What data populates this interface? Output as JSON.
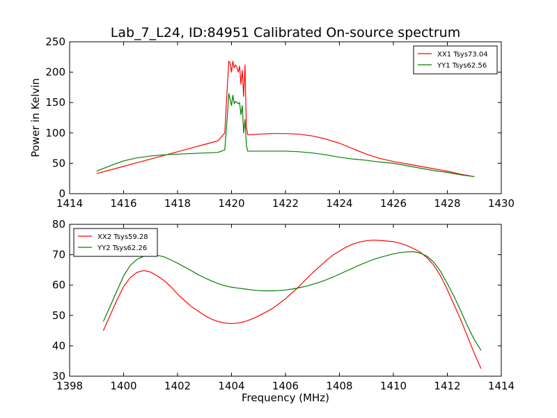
{
  "chart_data": {
    "title": "Lab_7_L24, ID:84951 Calibrated On-source spectrum",
    "colors": {
      "XX": "#ff0000",
      "YY": "#007f00"
    },
    "panels": [
      {
        "type": "line",
        "xlim": [
          1414,
          1430
        ],
        "ylim": [
          0,
          250
        ],
        "xticks": [
          1414,
          1416,
          1418,
          1420,
          1422,
          1424,
          1426,
          1428,
          1430
        ],
        "yticks": [
          0,
          50,
          100,
          150,
          200,
          250
        ],
        "xlabel": "",
        "ylabel": "Power in Kelvin",
        "legend_position": "top-right",
        "series": [
          {
            "name": "XX1 Tsys73.04",
            "color": "#ff0000",
            "x": [
              1415.0,
              1415.5,
              1416.0,
              1416.5,
              1417.0,
              1417.5,
              1418.0,
              1418.5,
              1419.0,
              1419.5,
              1419.75,
              1419.85,
              1419.9,
              1419.95,
              1420.0,
              1420.05,
              1420.1,
              1420.15,
              1420.2,
              1420.25,
              1420.3,
              1420.35,
              1420.4,
              1420.45,
              1420.5,
              1420.55,
              1420.6,
              1420.7,
              1421.0,
              1421.5,
              1422.0,
              1422.5,
              1423.0,
              1423.5,
              1424.0,
              1424.5,
              1425.0,
              1425.5,
              1426.0,
              1426.5,
              1427.0,
              1427.5,
              1428.0,
              1428.5,
              1429.0
            ],
            "y": [
              33,
              39,
              45,
              51,
              57,
              63,
              69,
              75,
              81,
              87,
              100,
              180,
              218,
              215,
              200,
              218,
              207,
              212,
              208,
              200,
              210,
              180,
              203,
              160,
              212,
              110,
              97,
              97,
              98,
              99,
              99,
              98,
              95,
              90,
              83,
              74,
              65,
              58,
              53,
              49,
              45,
              41,
              37,
              32,
              28
            ]
          },
          {
            "name": "YY1 Tsys62.56",
            "color": "#007f00",
            "x": [
              1415.0,
              1415.5,
              1416.0,
              1416.5,
              1417.0,
              1417.5,
              1418.0,
              1418.5,
              1419.0,
              1419.5,
              1419.75,
              1419.85,
              1419.9,
              1419.95,
              1420.0,
              1420.05,
              1420.1,
              1420.15,
              1420.2,
              1420.25,
              1420.3,
              1420.35,
              1420.4,
              1420.45,
              1420.5,
              1420.55,
              1420.6,
              1420.7,
              1421.0,
              1421.5,
              1422.0,
              1422.5,
              1423.0,
              1423.5,
              1424.0,
              1424.5,
              1425.0,
              1425.5,
              1426.0,
              1426.5,
              1427.0,
              1427.5,
              1428.0,
              1428.5,
              1429.0
            ],
            "y": [
              37,
              46,
              54,
              59,
              62,
              64,
              65,
              66,
              67,
              68,
              72,
              130,
              165,
              155,
              145,
              162,
              148,
              152,
              150,
              148,
              150,
              130,
              145,
              100,
              122,
              80,
              70,
              70,
              70,
              70,
              70,
              69,
              67,
              64,
              60,
              57,
              55,
              52,
              50,
              46,
              42,
              38,
              35,
              31,
              28
            ]
          }
        ]
      },
      {
        "type": "line",
        "xlim": [
          1398,
          1414
        ],
        "ylim": [
          30,
          80
        ],
        "xticks": [
          1398,
          1400,
          1402,
          1404,
          1406,
          1408,
          1410,
          1412,
          1414
        ],
        "yticks": [
          30,
          40,
          50,
          60,
          70,
          80
        ],
        "xlabel": "Frequency (MHz)",
        "ylabel": "",
        "legend_position": "top-left",
        "series": [
          {
            "name": "XX2 Tsys59.28",
            "color": "#ff0000",
            "x": [
              1399.25,
              1399.5,
              1399.75,
              1400.0,
              1400.25,
              1400.5,
              1400.75,
              1401.0,
              1401.25,
              1401.5,
              1401.75,
              1402.0,
              1402.25,
              1402.5,
              1402.75,
              1403.0,
              1403.25,
              1403.5,
              1403.75,
              1404.0,
              1404.25,
              1404.5,
              1404.75,
              1405.0,
              1405.25,
              1405.5,
              1405.75,
              1406.0,
              1406.25,
              1406.5,
              1406.75,
              1407.0,
              1407.25,
              1407.5,
              1407.75,
              1408.0,
              1408.25,
              1408.5,
              1408.75,
              1409.0,
              1409.25,
              1409.5,
              1409.75,
              1410.0,
              1410.25,
              1410.5,
              1410.75,
              1411.0,
              1411.25,
              1411.5,
              1411.75,
              1412.0,
              1412.25,
              1412.5,
              1412.75,
              1413.0,
              1413.25
            ],
            "y": [
              45,
              50,
              55,
              59.5,
              62.5,
              64.2,
              64.8,
              64.3,
              63,
              61.5,
              59.5,
              57,
              55,
              53,
              51.5,
              50,
              48.8,
              48,
              47.5,
              47.3,
              47.5,
              48,
              48.8,
              49.8,
              51,
              52.2,
              53.8,
              55.5,
              57.5,
              59.5,
              61.8,
              64,
              66,
              68,
              69.8,
              71.2,
              72.5,
              73.5,
              74.2,
              74.6,
              74.8,
              74.7,
              74.5,
              74.3,
              73.8,
              73,
              72,
              70.8,
              69,
              66.5,
              63,
              58.5,
              53.5,
              48.5,
              43,
              37.5,
              32.5
            ]
          },
          {
            "name": "YY2 Tsys62.26",
            "color": "#007f00",
            "x": [
              1399.25,
              1399.5,
              1399.75,
              1400.0,
              1400.25,
              1400.5,
              1400.75,
              1401.0,
              1401.25,
              1401.5,
              1401.75,
              1402.0,
              1402.25,
              1402.5,
              1402.75,
              1403.0,
              1403.25,
              1403.5,
              1403.75,
              1404.0,
              1404.25,
              1404.5,
              1404.75,
              1405.0,
              1405.25,
              1405.5,
              1405.75,
              1406.0,
              1406.25,
              1406.5,
              1406.75,
              1407.0,
              1407.25,
              1407.5,
              1407.75,
              1408.0,
              1408.25,
              1408.5,
              1408.75,
              1409.0,
              1409.25,
              1409.5,
              1409.75,
              1410.0,
              1410.25,
              1410.5,
              1410.75,
              1411.0,
              1411.25,
              1411.5,
              1411.75,
              1412.0,
              1412.25,
              1412.5,
              1412.75,
              1413.0,
              1413.25
            ],
            "y": [
              48,
              53,
              58,
              63,
              66.5,
              68.5,
              69.5,
              70,
              69.8,
              69.3,
              68.3,
              67.2,
              66,
              64.8,
              63.5,
              62.4,
              61.4,
              60.5,
              59.8,
              59.3,
              59,
              58.7,
              58.4,
              58.2,
              58.1,
              58.1,
              58.2,
              58.4,
              58.7,
              59.1,
              59.6,
              60.2,
              60.9,
              61.7,
              62.6,
              63.6,
              64.6,
              65.6,
              66.6,
              67.5,
              68.4,
              69.1,
              69.7,
              70.3,
              70.7,
              70.9,
              71,
              70.5,
              69.5,
              67.5,
              64.5,
              60.5,
              56.2,
              51.5,
              46.5,
              42,
              38.5
            ]
          }
        ]
      }
    ]
  }
}
